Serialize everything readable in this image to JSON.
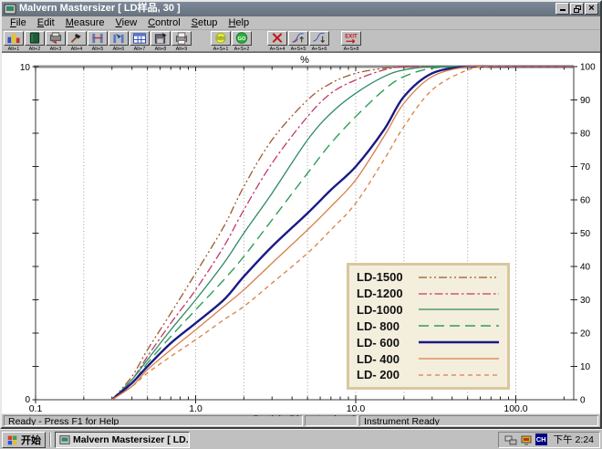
{
  "window": {
    "title": "Malvern Mastersizer [ LD样品, 30 ]",
    "controls": {
      "minimize": "minimize",
      "restore": "restore",
      "close": "close"
    }
  },
  "menu": {
    "items": [
      "File",
      "Edit",
      "Measure",
      "View",
      "Control",
      "Setup",
      "Help"
    ]
  },
  "toolbar": {
    "groups": [
      {
        "buttons": [
          {
            "icon": "histogram-icon",
            "label": "Alt+1"
          },
          {
            "icon": "book-icon",
            "label": "Alt+2"
          },
          {
            "icon": "printer-export-icon",
            "label": "Alt+3"
          },
          {
            "icon": "tool-icon",
            "label": "Alt+4"
          },
          {
            "icon": "sample-cell-icon",
            "label": "Alt+5"
          },
          {
            "icon": "sample-cell-fill-icon",
            "label": "Alt+6"
          },
          {
            "icon": "table-icon",
            "label": "Alt+7"
          },
          {
            "icon": "save-export-icon",
            "label": "Alt+8"
          },
          {
            "icon": "printer-icon",
            "label": "Alt+9"
          }
        ]
      },
      {
        "buttons": [
          {
            "icon": "go-cycle-icon",
            "label": "A+S+1"
          },
          {
            "icon": "go-icon",
            "label": "A+S+2"
          }
        ]
      },
      {
        "buttons": [
          {
            "icon": "cancel-icon",
            "label": "A+S+4"
          },
          {
            "icon": "graph-up-icon",
            "label": "A+S+5"
          },
          {
            "icon": "graph-down-icon",
            "label": "A+S+6"
          }
        ]
      },
      {
        "buttons": [
          {
            "icon": "exit-icon",
            "label": "A+S+8"
          }
        ]
      }
    ]
  },
  "chart_data": {
    "type": "line",
    "top_axis_label": "%",
    "xlabel": "Particle Diameter (µm.)",
    "x_scale": "log",
    "xlim": [
      0.1,
      230
    ],
    "x_ticks": [
      0.1,
      1.0,
      10.0,
      100.0
    ],
    "x_tick_labels": [
      "0.1",
      "1.0",
      "10.0",
      "100.0"
    ],
    "x_gridlines": [
      0.2,
      0.5,
      1,
      2,
      5,
      10,
      20,
      50,
      100
    ],
    "y_left_axis": {
      "min": 0,
      "max": 10,
      "tick_step": 1,
      "shown_labels": [
        "0",
        "10"
      ]
    },
    "y_right_axis": {
      "min": 0,
      "max": 100,
      "tick_step": 10
    },
    "legend_position": "lower-right",
    "x": [
      0.3,
      0.4,
      0.5,
      0.7,
      1,
      1.5,
      2,
      3,
      5,
      7,
      10,
      15,
      20,
      30,
      50,
      70,
      100,
      230
    ],
    "series": [
      {
        "name": "LD-1500",
        "color": "#9b5a2c",
        "dash": "dash-dot-dot",
        "width": 1.3,
        "values": [
          0,
          7,
          15,
          26,
          38,
          52,
          64,
          78,
          90,
          95,
          98,
          99.5,
          100,
          100,
          100,
          100,
          100,
          100
        ]
      },
      {
        "name": "LD-1200",
        "color": "#c03a6a",
        "dash": "dash-dot",
        "width": 1.3,
        "values": [
          0,
          6,
          13,
          23,
          33,
          46,
          57,
          71,
          85,
          92,
          96,
          99,
          100,
          100,
          100,
          100,
          100,
          100
        ]
      },
      {
        "name": "LD-1000",
        "color": "#2e8a62",
        "dash": "solid",
        "width": 1.3,
        "values": [
          0,
          6,
          12,
          21,
          30,
          41,
          50,
          62,
          78,
          86,
          92,
          97,
          99,
          100,
          100,
          100,
          100,
          100
        ]
      },
      {
        "name": "LD- 800",
        "color": "#2f9e58",
        "dash": "long-dash",
        "width": 1.4,
        "values": [
          0,
          5,
          11,
          19,
          27,
          36,
          43,
          54,
          68,
          77,
          85,
          93,
          97,
          99.5,
          100,
          100,
          100,
          100
        ]
      },
      {
        "name": "LD- 600",
        "color": "#1a1a86",
        "dash": "solid",
        "width": 2.4,
        "values": [
          0,
          5,
          10,
          17,
          23,
          30,
          37,
          46,
          56,
          63,
          70,
          81,
          91,
          98,
          100,
          100,
          100,
          100
        ]
      },
      {
        "name": "LD- 400",
        "color": "#d97e49",
        "dash": "solid",
        "width": 1.3,
        "values": [
          0,
          4,
          9,
          15,
          21,
          28,
          33,
          41,
          51,
          58,
          66,
          79,
          89,
          97,
          100,
          100,
          100,
          100
        ]
      },
      {
        "name": "LD- 200",
        "color": "#d8813f",
        "dash": "dash",
        "width": 1.3,
        "values": [
          0,
          4,
          8,
          13,
          18,
          24,
          28,
          35,
          44,
          51,
          59,
          72,
          82,
          93,
          99,
          100,
          100,
          100
        ]
      }
    ],
    "legend_colors": {
      "box_background": "#f4eedd",
      "box_border": "#d8c89e"
    }
  },
  "status_bar": {
    "left": "Ready - Press F1 for Help",
    "right": "Instrument Ready"
  },
  "taskbar": {
    "start_label": "开始",
    "task_label": "Malvern Mastersizer [ LD...",
    "language_indicator": "CH",
    "time": "下午 2:24"
  }
}
